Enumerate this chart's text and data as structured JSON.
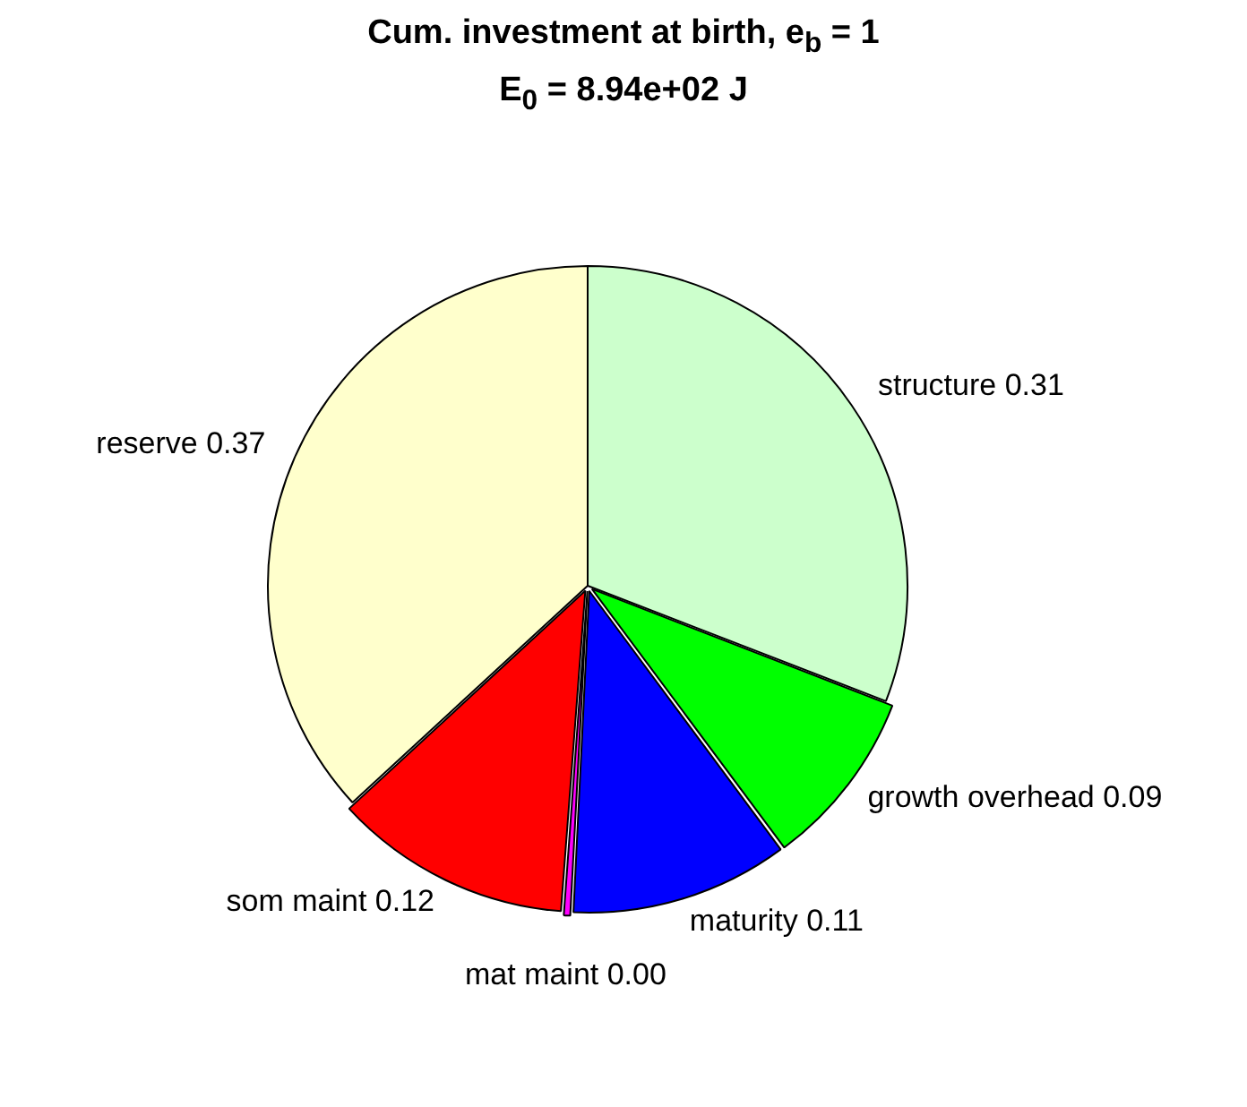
{
  "chart_data": {
    "type": "pie",
    "title": "Cum. investment at birth, e$_{b}$ = 1",
    "subtitle": "E$_{0}$ = 8.94e+02 J",
    "categories": [
      "structure",
      "growth overhead",
      "maturity",
      "mat maint",
      "som maint",
      "reserve"
    ],
    "values": [
      0.31,
      0.09,
      0.11,
      0.004,
      0.12,
      0.37
    ],
    "value_labels": [
      "0.31",
      "0.09",
      "0.11",
      "0.00",
      "0.12",
      "0.37"
    ],
    "colors": [
      "#ccffcc",
      "#00ff00",
      "#0000ff",
      "#ff00ff",
      "#ff0000",
      "#ffffcc"
    ],
    "legend": false
  }
}
